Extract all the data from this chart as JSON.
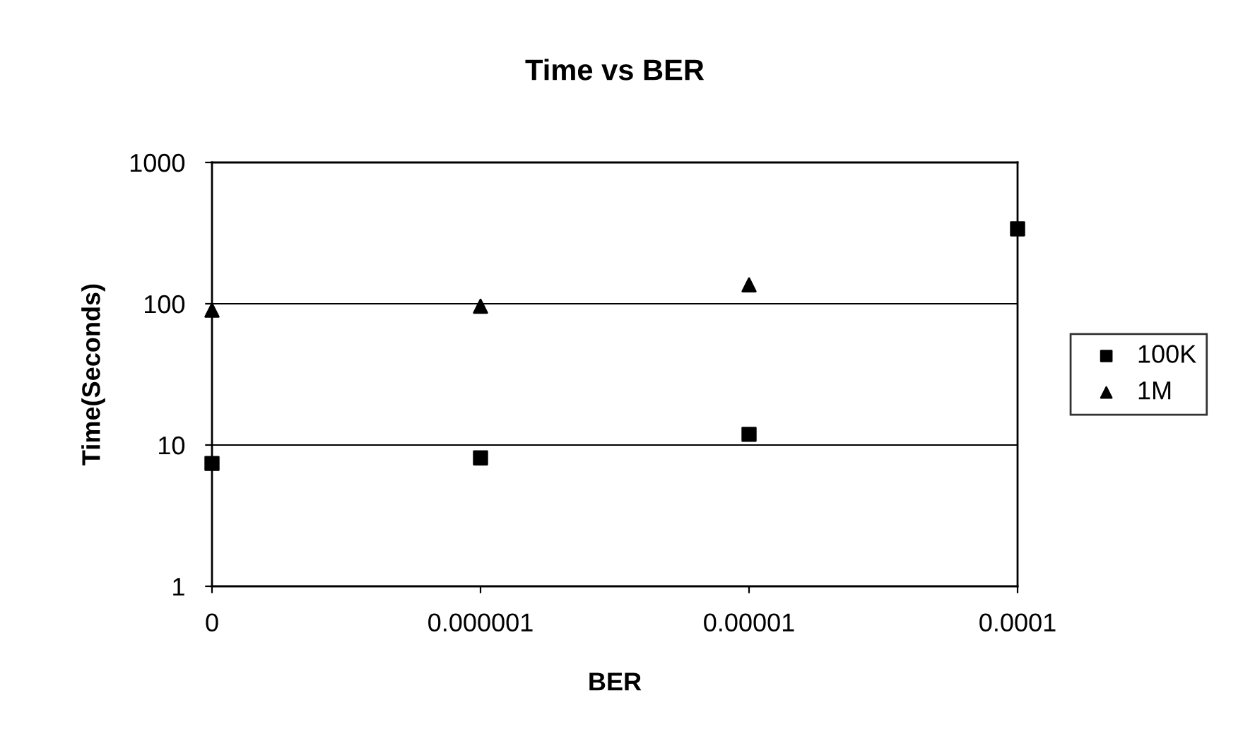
{
  "chart_data": {
    "type": "scatter",
    "title": "Time vs BER",
    "xlabel": "BER",
    "ylabel": "Time(Seconds)",
    "categories": [
      "0",
      "0.000001",
      "0.00001",
      "0.0001"
    ],
    "series": [
      {
        "name": "100K",
        "color": "#000000",
        "marker": "square",
        "values": [
          7.4,
          8.1,
          11.9,
          339
        ]
      },
      {
        "name": "1M",
        "color": "#000000",
        "marker": "triangle",
        "values": [
          90,
          96,
          136,
          null
        ]
      }
    ],
    "log": "y",
    "ylim": [
      1,
      1000
    ],
    "yticks": [
      1,
      10,
      100,
      1000
    ],
    "grid": "y",
    "legend": "right"
  }
}
